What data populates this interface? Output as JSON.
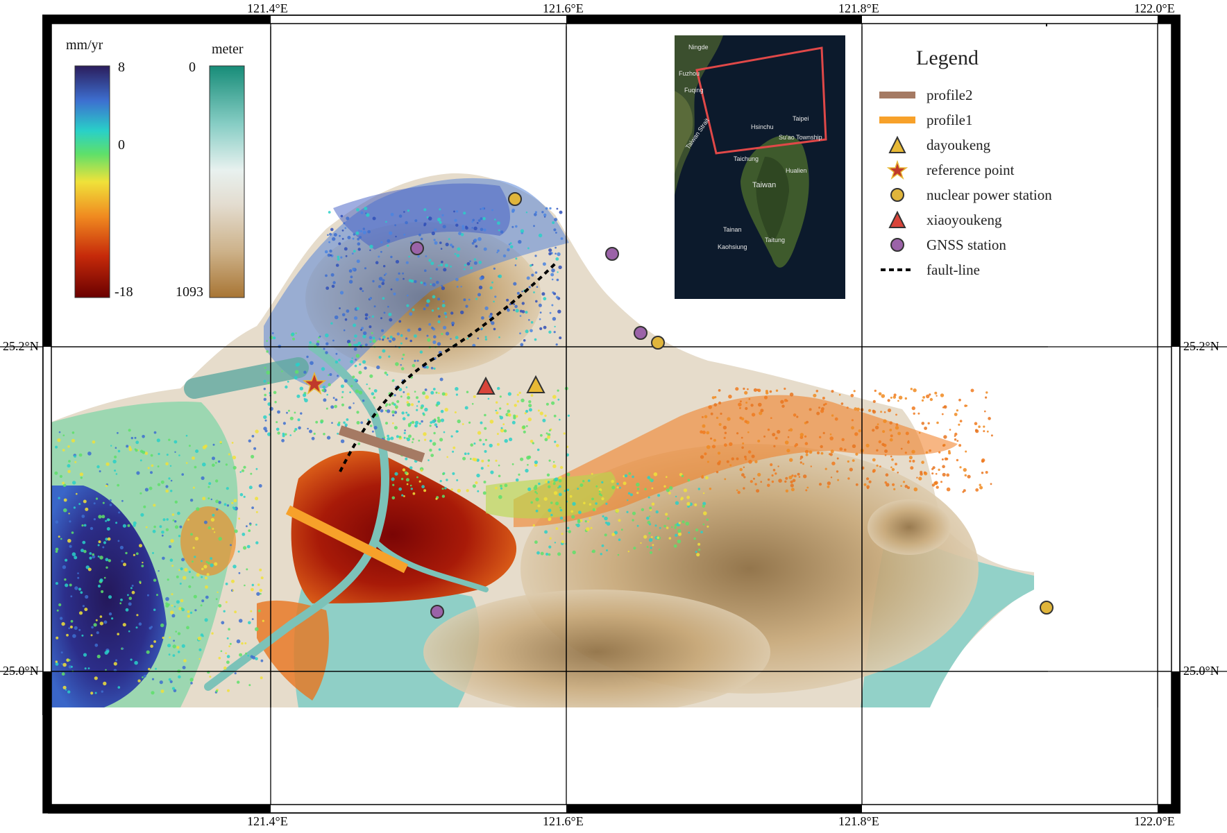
{
  "map": {
    "top_lon_labels": [
      "121.4°E",
      "121.6°E",
      "121.8°E",
      "122.0°E"
    ],
    "bottom_lon_labels": [
      "121.4°E",
      "121.6°E",
      "121.8°E",
      "122.0°E"
    ],
    "left_lat_labels": [
      "25.2°N",
      "25.0°N"
    ],
    "right_lat_labels": [
      "25.2°N",
      "25.0°N"
    ]
  },
  "velocity_colorbar": {
    "title": "mm/yr",
    "ticks": [
      "8",
      "0",
      "-18"
    ],
    "colors": [
      "#2b1d5c",
      "#3d6fd0",
      "#29d0c8",
      "#5ee06a",
      "#f0e23a",
      "#f08a20",
      "#c62a0a",
      "#6a0000"
    ]
  },
  "elevation_colorbar": {
    "title": "meter",
    "ticks": [
      "0",
      "1093"
    ],
    "colors": [
      "#178c78",
      "#86cdc4",
      "#e8f1ef",
      "#e3dccf",
      "#cdb28a",
      "#a87534"
    ]
  },
  "legend": {
    "title": "Legend",
    "items": [
      {
        "label": "profile2",
        "symbol": "line",
        "color": "#a57a63"
      },
      {
        "label": "profile1",
        "symbol": "line",
        "color": "#f7a12a"
      },
      {
        "label": "dayoukeng",
        "symbol": "triangle",
        "color": "#e8b935"
      },
      {
        "label": "reference point",
        "symbol": "star",
        "color": "#c0392b"
      },
      {
        "label": "nuclear power station",
        "symbol": "circle",
        "color": "#e0b53b"
      },
      {
        "label": "xiaoyoukeng",
        "symbol": "triangle",
        "color": "#d9443a"
      },
      {
        "label": "GNSS station",
        "symbol": "circle",
        "color": "#9b63a8"
      },
      {
        "label": "fault-line",
        "symbol": "dashed",
        "color": "#000000"
      }
    ]
  },
  "inset": {
    "labels": [
      "Ningde",
      "Fuzhou",
      "Fuqing",
      "Taipei",
      "Hsinchu",
      "Su'ao Township",
      "Taichung",
      "Hualien",
      "Taiwan",
      "Tainan",
      "Kaohsiung",
      "Taitung",
      "Taiwan Strait"
    ],
    "box_color": "#e04848"
  }
}
